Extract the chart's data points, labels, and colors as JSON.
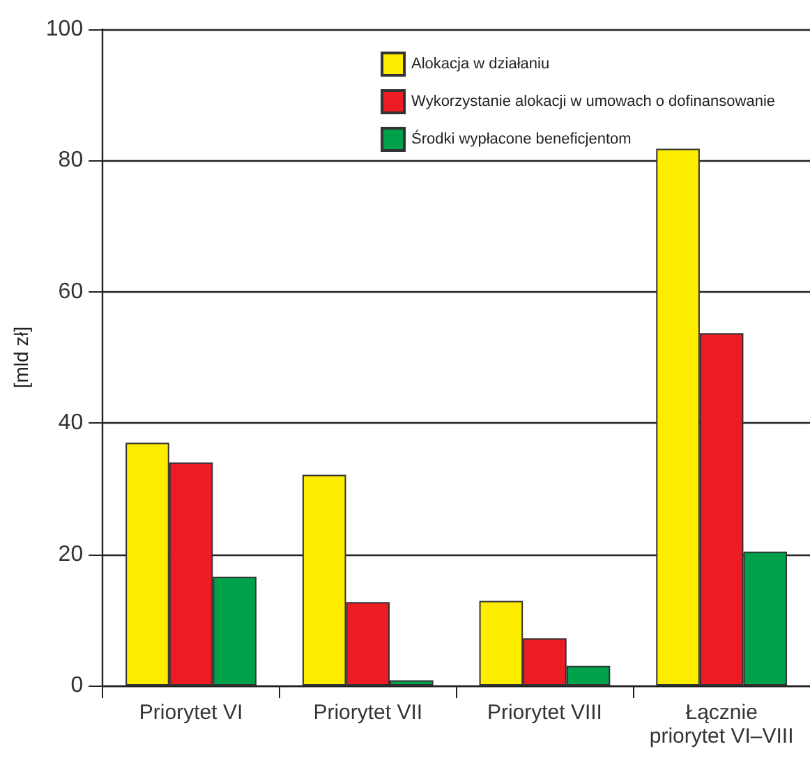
{
  "chart_data": {
    "type": "bar",
    "ylabel": "[mld zł]",
    "categories": [
      "Priorytet VI",
      "Priorytet VII",
      "Priorytet VIII",
      "Łącznie\npriorytet VI–VIII"
    ],
    "series": [
      {
        "name": "Alokacja w działaniu",
        "color": "#ffed00",
        "values": [
          37.0,
          32.1,
          12.9,
          81.8
        ]
      },
      {
        "name": "Wykorzystanie alokacji w umowach o dofinansowanie",
        "color": "#ed1c24",
        "values": [
          34.0,
          12.7,
          7.2,
          53.7
        ]
      },
      {
        "name": "Środki wypłacone beneficjentom",
        "color": "#00a14b",
        "values": [
          16.6,
          0.8,
          3.0,
          20.4
        ]
      }
    ],
    "ylim": [
      0,
      100
    ],
    "yticks": [
      0,
      20,
      40,
      60,
      80,
      100
    ],
    "grid": "y",
    "legend": "top right"
  }
}
